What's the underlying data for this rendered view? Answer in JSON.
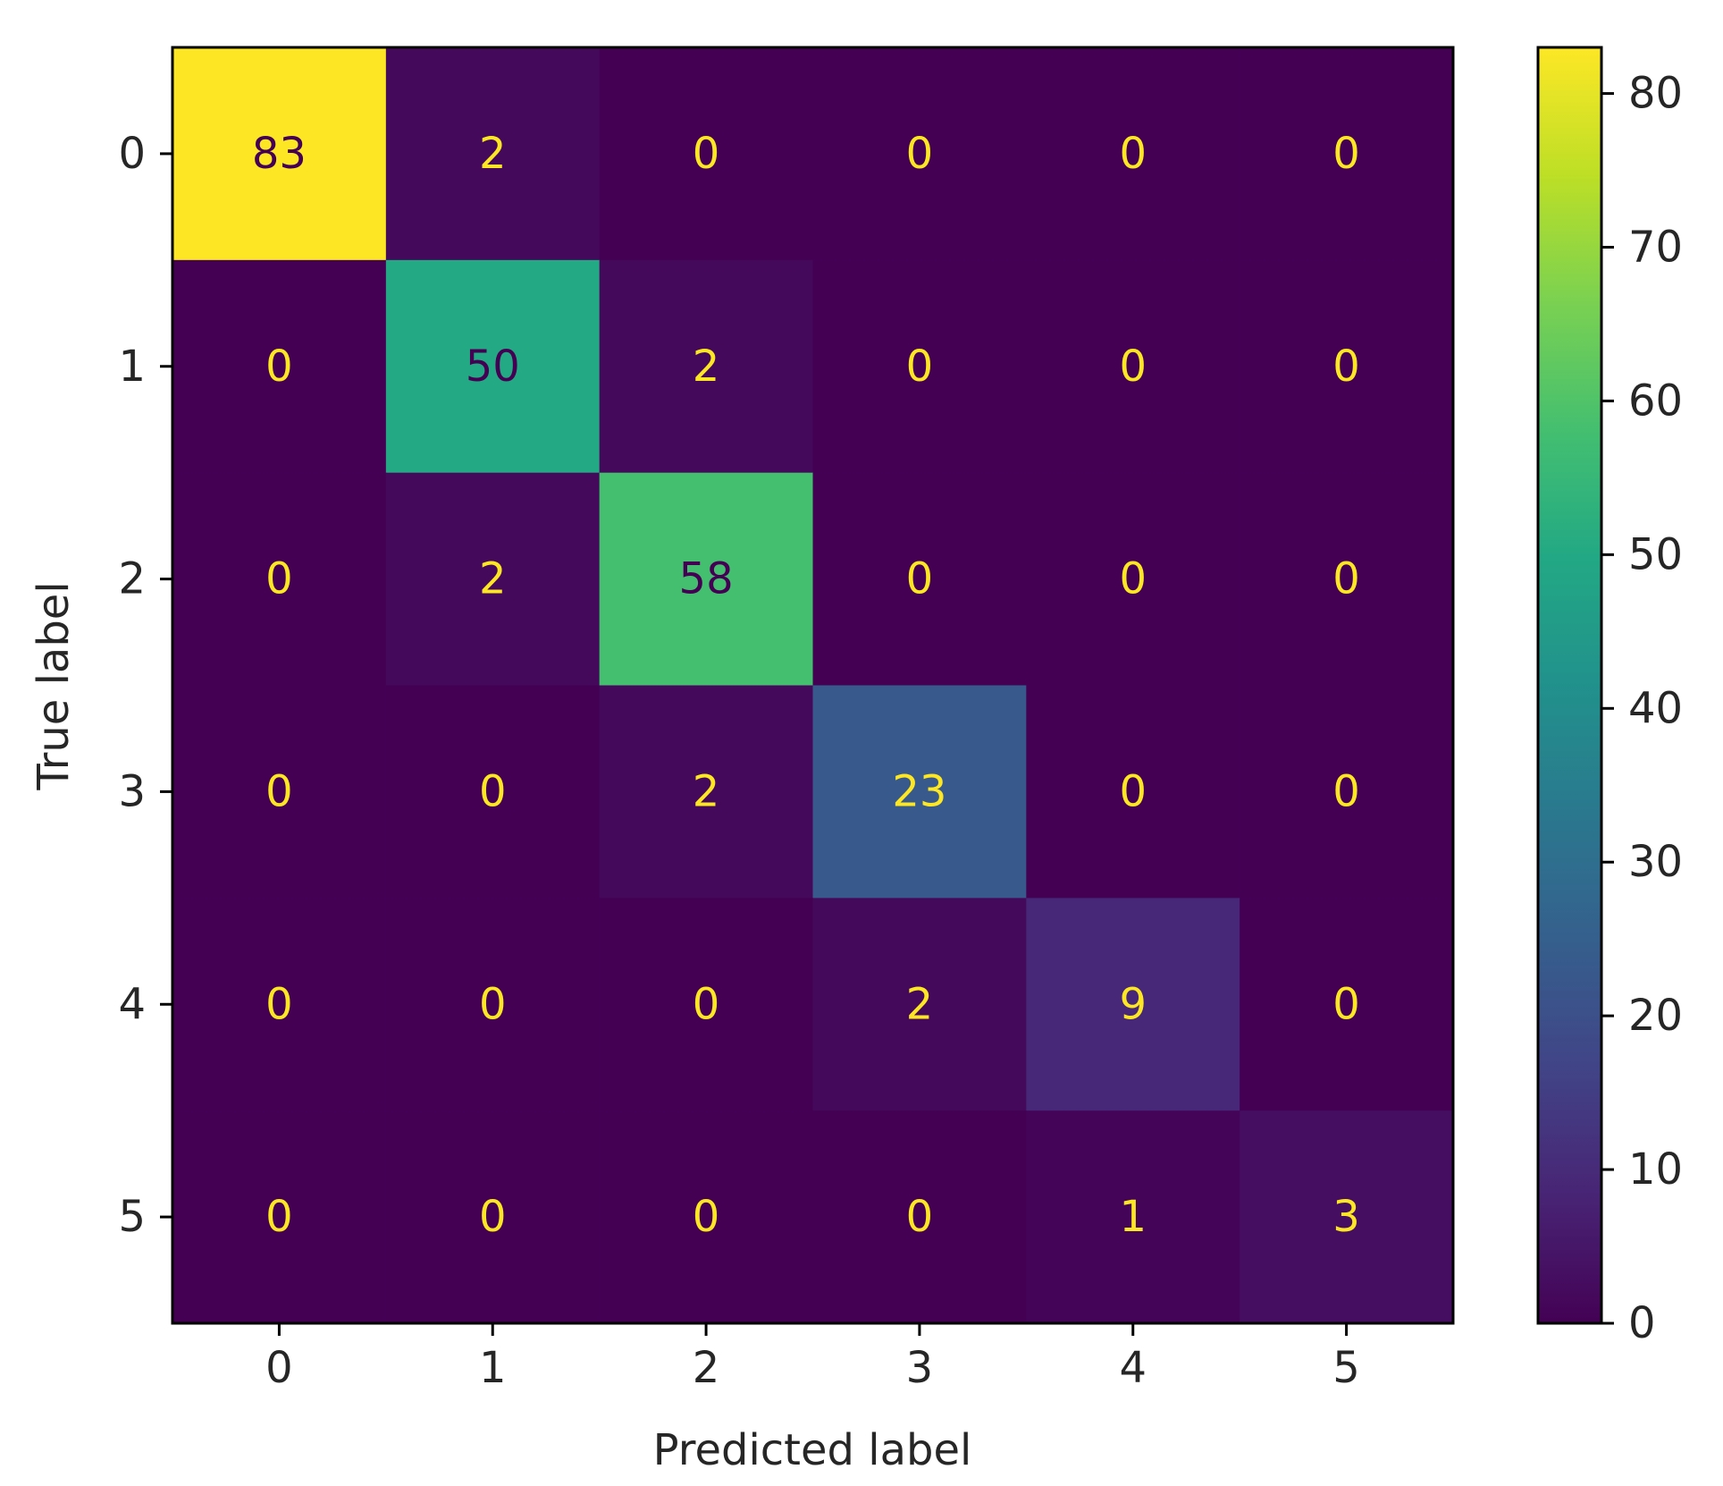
{
  "chart_data": {
    "type": "heatmap",
    "xlabel": "Predicted label",
    "ylabel": "True label",
    "x_ticks": [
      "0",
      "1",
      "2",
      "3",
      "4",
      "5"
    ],
    "y_ticks": [
      "0",
      "1",
      "2",
      "3",
      "4",
      "5"
    ],
    "matrix": [
      [
        83,
        2,
        0,
        0,
        0,
        0
      ],
      [
        0,
        50,
        2,
        0,
        0,
        0
      ],
      [
        0,
        2,
        58,
        0,
        0,
        0
      ],
      [
        0,
        0,
        2,
        23,
        0,
        0
      ],
      [
        0,
        0,
        0,
        2,
        9,
        0
      ],
      [
        0,
        0,
        0,
        0,
        1,
        3
      ]
    ],
    "colormap": "viridis",
    "colorbar": {
      "range": [
        0,
        83
      ],
      "ticks": [
        0,
        10,
        20,
        30,
        40,
        50,
        60,
        70,
        80
      ],
      "tick_labels": [
        "0",
        "10",
        "20",
        "30",
        "40",
        "50",
        "60",
        "70",
        "80"
      ]
    },
    "annotation_text_colors": {
      "light": "#fde725",
      "dark": "#440154"
    },
    "axis_color": "#000000",
    "text_color": "#262626"
  }
}
